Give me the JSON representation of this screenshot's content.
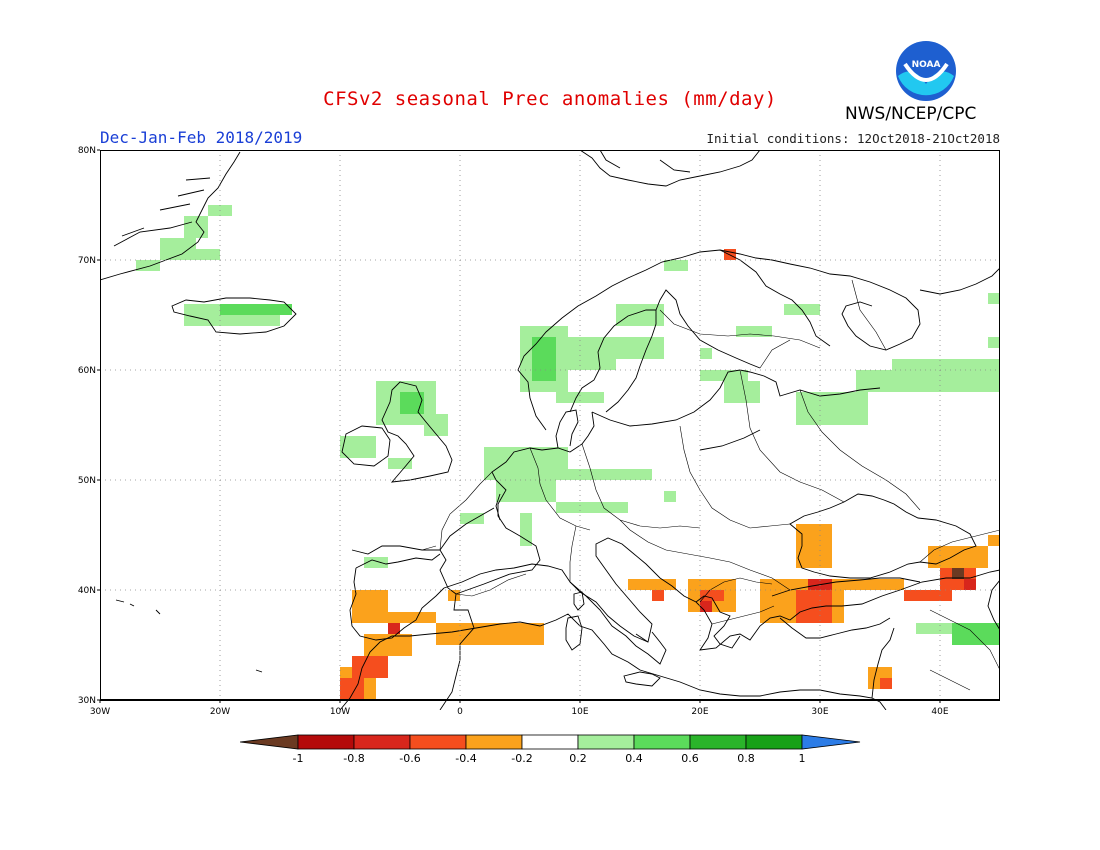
{
  "header": {
    "title": "CFSv2 seasonal Prec anomalies (mm/day)",
    "season": "Dec-Jan-Feb 2018/2019",
    "initial_conditions": "Initial conditions: 12Oct2018-21Oct2018",
    "agency": "NWS/NCEP/CPC",
    "logo_text": "NOAA"
  },
  "map": {
    "lon_range": [
      -30,
      45
    ],
    "lat_range": [
      30,
      80
    ],
    "lon_ticks": [
      {
        "value": -30,
        "label": "30W"
      },
      {
        "value": -20,
        "label": "20W"
      },
      {
        "value": -10,
        "label": "10W"
      },
      {
        "value": 0,
        "label": "0"
      },
      {
        "value": 10,
        "label": "10E"
      },
      {
        "value": 20,
        "label": "20E"
      },
      {
        "value": 30,
        "label": "30E"
      },
      {
        "value": 40,
        "label": "40E"
      }
    ],
    "lat_ticks": [
      {
        "value": 30,
        "label": "30N"
      },
      {
        "value": 40,
        "label": "40N"
      },
      {
        "value": 50,
        "label": "50N"
      },
      {
        "value": 60,
        "label": "60N"
      },
      {
        "value": 70,
        "label": "70N"
      },
      {
        "value": 80,
        "label": "80N"
      }
    ],
    "grid": "dotted"
  },
  "colorbar": {
    "labels": [
      "-1",
      "-0.8",
      "-0.6",
      "-0.4",
      "-0.2",
      "0.2",
      "0.4",
      "0.6",
      "0.8",
      "1"
    ],
    "colors": [
      "#6b3a22",
      "#b40a0a",
      "#d8261c",
      "#f54e1e",
      "#fba21c",
      "#ffffff",
      "#a5ee9c",
      "#5bdb5b",
      "#2ab42a",
      "#17a117",
      "#2c7ce6"
    ]
  },
  "chart_data": {
    "type": "heatmap",
    "title": "CFSv2 seasonal Prec anomalies (mm/day)",
    "units": "mm/day",
    "cell_size_deg": 1,
    "color_scale": {
      "-1": "#b40a0a",
      "-0.8": "#d8261c",
      "-0.6": "#f54e1e",
      "-0.4": "#fba21c",
      "0.3": "#a5ee9c",
      "0.5": "#5bdb5b",
      "0.7": "#2ab42a",
      "-1.2": "#6b3a22"
    },
    "regions": [
      {
        "lon": [
          -27,
          -25
        ],
        "lat": [
          69,
          70
        ],
        "value": 0.3
      },
      {
        "lon": [
          -25,
          -22
        ],
        "lat": [
          70,
          72
        ],
        "value": 0.3
      },
      {
        "lon": [
          -23,
          -21
        ],
        "lat": [
          72,
          74
        ],
        "value": 0.3
      },
      {
        "lon": [
          -22,
          -20
        ],
        "lat": [
          70,
          71
        ],
        "value": 0.3
      },
      {
        "lon": [
          -21,
          -19
        ],
        "lat": [
          74,
          75
        ],
        "value": 0.3
      },
      {
        "lon": [
          -23,
          -15
        ],
        "lat": [
          64,
          66
        ],
        "value": 0.3
      },
      {
        "lon": [
          -20,
          -14
        ],
        "lat": [
          65,
          66
        ],
        "value": 0.5
      },
      {
        "lon": [
          -10,
          -7
        ],
        "lat": [
          52,
          54
        ],
        "value": 0.3
      },
      {
        "lon": [
          -7,
          -2
        ],
        "lat": [
          55,
          59
        ],
        "value": 0.3
      },
      {
        "lon": [
          -5,
          -3
        ],
        "lat": [
          56,
          58
        ],
        "value": 0.5
      },
      {
        "lon": [
          -3,
          -1
        ],
        "lat": [
          54,
          56
        ],
        "value": 0.3
      },
      {
        "lon": [
          -6,
          -4
        ],
        "lat": [
          51,
          52
        ],
        "value": 0.3
      },
      {
        "lon": [
          0,
          2
        ],
        "lat": [
          46,
          47
        ],
        "value": 0.3
      },
      {
        "lon": [
          2,
          9
        ],
        "lat": [
          50,
          53
        ],
        "value": 0.3
      },
      {
        "lon": [
          3,
          8
        ],
        "lat": [
          48,
          50
        ],
        "value": 0.3
      },
      {
        "lon": [
          9,
          16
        ],
        "lat": [
          50,
          51
        ],
        "value": 0.3
      },
      {
        "lon": [
          8,
          14
        ],
        "lat": [
          47,
          48
        ],
        "value": 0.3
      },
      {
        "lon": [
          5,
          6
        ],
        "lat": [
          44,
          47
        ],
        "value": 0.3
      },
      {
        "lon": [
          5,
          9
        ],
        "lat": [
          58,
          64
        ],
        "value": 0.3
      },
      {
        "lon": [
          6,
          8
        ],
        "lat": [
          59,
          63
        ],
        "value": 0.5
      },
      {
        "lon": [
          9,
          13
        ],
        "lat": [
          60,
          63
        ],
        "value": 0.3
      },
      {
        "lon": [
          13,
          17
        ],
        "lat": [
          61,
          63
        ],
        "value": 0.3
      },
      {
        "lon": [
          13,
          17
        ],
        "lat": [
          64,
          66
        ],
        "value": 0.3
      },
      {
        "lon": [
          8,
          12
        ],
        "lat": [
          57,
          58
        ],
        "value": 0.3
      },
      {
        "lon": [
          17,
          19
        ],
        "lat": [
          69,
          70
        ],
        "value": 0.3
      },
      {
        "lon": [
          27,
          30
        ],
        "lat": [
          65,
          66
        ],
        "value": 0.3
      },
      {
        "lon": [
          23,
          26
        ],
        "lat": [
          63,
          64
        ],
        "value": 0.3
      },
      {
        "lon": [
          20,
          21
        ],
        "lat": [
          61,
          62
        ],
        "value": 0.3
      },
      {
        "lon": [
          22,
          25
        ],
        "lat": [
          57,
          59
        ],
        "value": 0.3
      },
      {
        "lon": [
          28,
          34
        ],
        "lat": [
          55,
          58
        ],
        "value": 0.3
      },
      {
        "lon": [
          33,
          36
        ],
        "lat": [
          58,
          60
        ],
        "value": 0.3
      },
      {
        "lon": [
          36,
          45
        ],
        "lat": [
          58,
          61
        ],
        "value": 0.3
      },
      {
        "lon": [
          44,
          45
        ],
        "lat": [
          62,
          63
        ],
        "value": 0.3
      },
      {
        "lon": [
          44,
          45
        ],
        "lat": [
          66,
          67
        ],
        "value": 0.3
      },
      {
        "lon": [
          -8,
          -6
        ],
        "lat": [
          42,
          43
        ],
        "value": 0.3
      },
      {
        "lon": [
          17,
          18
        ],
        "lat": [
          48,
          49
        ],
        "value": 0.3
      },
      {
        "lon": [
          38,
          45
        ],
        "lat": [
          36,
          37
        ],
        "value": 0.3
      },
      {
        "lon": [
          41,
          45
        ],
        "lat": [
          35,
          37
        ],
        "value": 0.5
      },
      {
        "lon": [
          20,
          24
        ],
        "lat": [
          59,
          60
        ],
        "value": 0.3
      },
      {
        "lon": [
          -9,
          -6
        ],
        "lat": [
          37,
          40
        ],
        "value": -0.4
      },
      {
        "lon": [
          -7,
          -2
        ],
        "lat": [
          37,
          38
        ],
        "value": -0.4
      },
      {
        "lon": [
          -2,
          7
        ],
        "lat": [
          35,
          37
        ],
        "value": -0.4
      },
      {
        "lon": [
          -8,
          -4
        ],
        "lat": [
          34,
          36
        ],
        "value": -0.4
      },
      {
        "lon": [
          -10,
          -7
        ],
        "lat": [
          30,
          33
        ],
        "value": -0.4
      },
      {
        "lon": [
          -9,
          -6
        ],
        "lat": [
          32,
          34
        ],
        "value": -0.6
      },
      {
        "lon": [
          -6,
          -5
        ],
        "lat": [
          36,
          37
        ],
        "value": -0.8
      },
      {
        "lon": [
          -10,
          -8
        ],
        "lat": [
          30,
          32
        ],
        "value": -0.6
      },
      {
        "lon": [
          -1,
          0
        ],
        "lat": [
          39,
          40
        ],
        "value": -0.4
      },
      {
        "lon": [
          14,
          18
        ],
        "lat": [
          40,
          41
        ],
        "value": -0.4
      },
      {
        "lon": [
          16,
          17
        ],
        "lat": [
          39,
          40
        ],
        "value": -0.6
      },
      {
        "lon": [
          19,
          23
        ],
        "lat": [
          38,
          41
        ],
        "value": -0.4
      },
      {
        "lon": [
          20,
          22
        ],
        "lat": [
          39,
          40
        ],
        "value": -0.6
      },
      {
        "lon": [
          20,
          21
        ],
        "lat": [
          38,
          39
        ],
        "value": -0.8
      },
      {
        "lon": [
          25,
          32
        ],
        "lat": [
          37,
          41
        ],
        "value": -0.4
      },
      {
        "lon": [
          28,
          31
        ],
        "lat": [
          37,
          40
        ],
        "value": -0.6
      },
      {
        "lon": [
          29,
          31
        ],
        "lat": [
          40,
          41
        ],
        "value": -0.8
      },
      {
        "lon": [
          32,
          37
        ],
        "lat": [
          40,
          41
        ],
        "value": -0.4
      },
      {
        "lon": [
          28,
          31
        ],
        "lat": [
          42,
          46
        ],
        "value": -0.4
      },
      {
        "lon": [
          37,
          41
        ],
        "lat": [
          39,
          40
        ],
        "value": -0.6
      },
      {
        "lon": [
          39,
          44
        ],
        "lat": [
          42,
          44
        ],
        "value": -0.4
      },
      {
        "lon": [
          40,
          43
        ],
        "lat": [
          40,
          42
        ],
        "value": -0.6
      },
      {
        "lon": [
          41,
          42
        ],
        "lat": [
          41,
          42
        ],
        "value": -1.2
      },
      {
        "lon": [
          42,
          43
        ],
        "lat": [
          40,
          41
        ],
        "value": -0.8
      },
      {
        "lon": [
          44,
          45
        ],
        "lat": [
          44,
          45
        ],
        "value": -0.4
      },
      {
        "lon": [
          34,
          36
        ],
        "lat": [
          31,
          33
        ],
        "value": -0.4
      },
      {
        "lon": [
          35,
          36
        ],
        "lat": [
          31,
          32
        ],
        "value": -0.6
      },
      {
        "lon": [
          22,
          23
        ],
        "lat": [
          70,
          71
        ],
        "value": -0.6
      }
    ]
  }
}
